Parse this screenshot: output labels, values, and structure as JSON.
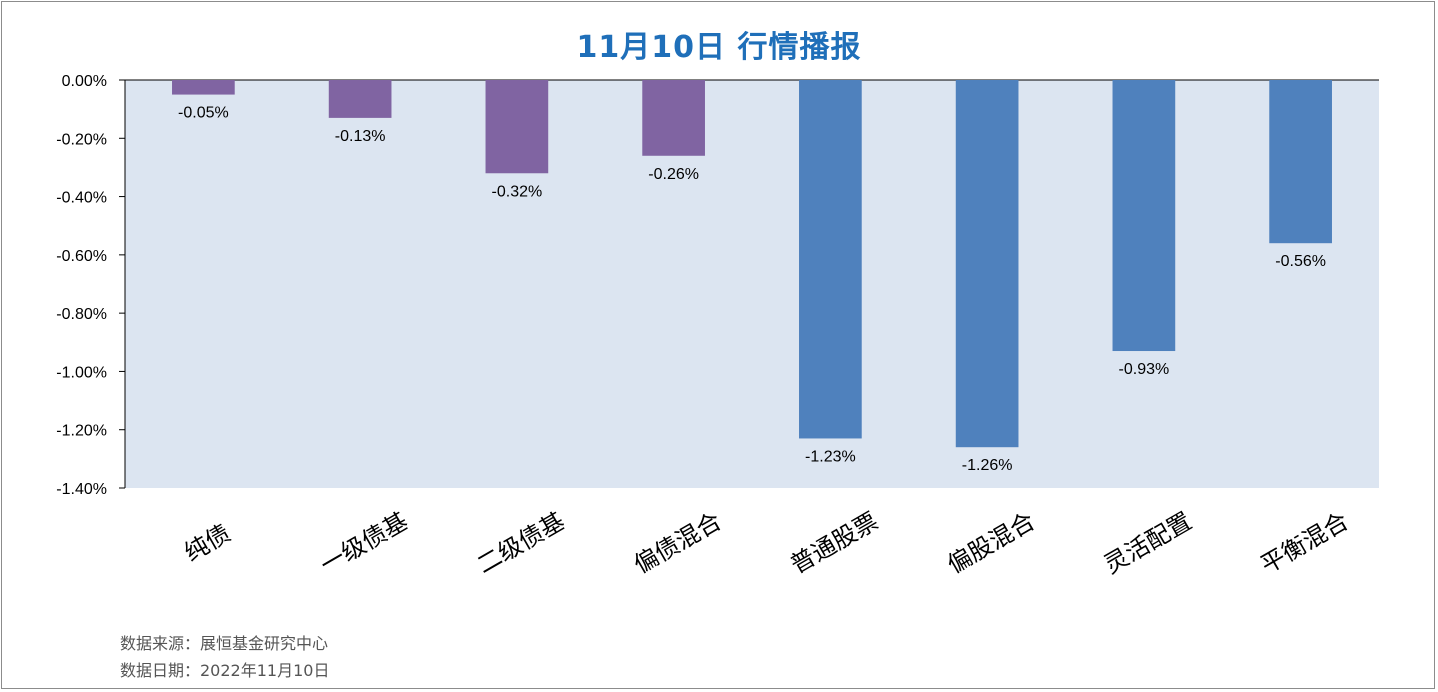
{
  "title": "11月10日 行情播报",
  "footer": {
    "source": "数据来源：展恒基金研究中心",
    "date": "数据日期：2022年11月10日"
  },
  "colors": {
    "plot_background": "#dce5f1",
    "bond_bar": "#8064a2",
    "equity_bar": "#4f81bd",
    "title": "#1f6fb9"
  },
  "chart_data": {
    "type": "bar",
    "title": "11月10日 行情播报",
    "xlabel": "",
    "ylabel": "",
    "categories": [
      "纯债",
      "一级债基",
      "二级债基",
      "偏债混合",
      "普通股票",
      "偏股混合",
      "灵活配置",
      "平衡混合"
    ],
    "values": [
      -0.05,
      -0.13,
      -0.32,
      -0.26,
      -1.23,
      -1.26,
      -0.93,
      -0.56
    ],
    "value_labels": [
      "-0.05%",
      "-0.13%",
      "-0.32%",
      "-0.26%",
      "-1.23%",
      "-1.26%",
      "-0.93%",
      "-0.56%"
    ],
    "bar_colors": [
      "#8064a2",
      "#8064a2",
      "#8064a2",
      "#8064a2",
      "#4f81bd",
      "#4f81bd",
      "#4f81bd",
      "#4f81bd"
    ],
    "ylim": [
      -1.4,
      0
    ],
    "yticks": [
      0,
      -0.2,
      -0.4,
      -0.6,
      -0.8,
      -1.0,
      -1.2,
      -1.4
    ],
    "ytick_labels": [
      "0.00%",
      "-0.20%",
      "-0.40%",
      "-0.60%",
      "-0.80%",
      "-1.00%",
      "-1.20%",
      "-1.40%"
    ],
    "grid": false,
    "legend": "none"
  }
}
